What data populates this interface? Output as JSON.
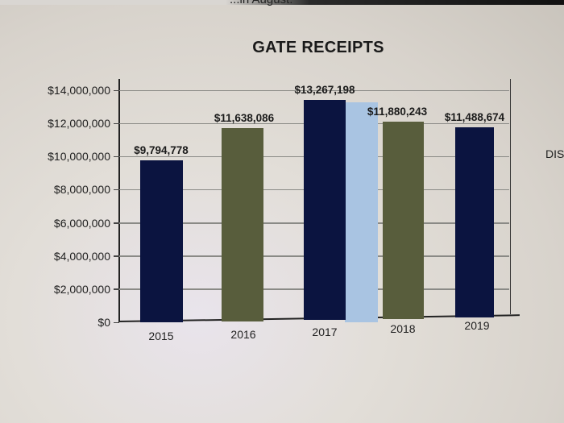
{
  "page": {
    "cut_off_top_text": "...in August.",
    "side_text": "DIS"
  },
  "chart_data": {
    "type": "bar",
    "title": "GATE RECEIPTS",
    "xlabel": "",
    "ylabel": "",
    "ylim": [
      0,
      14000000
    ],
    "grid": true,
    "legend": null,
    "categories": [
      "2015",
      "2016",
      "2017",
      "2018",
      "2019"
    ],
    "values": [
      9794778,
      11638086,
      13267198,
      11880243,
      11488674
    ],
    "value_labels": [
      "$9,794,778",
      "$11,638,086",
      "$13,267,198",
      "$11,880,243",
      "$11,488,674"
    ],
    "bar_colors": [
      "#0b1440",
      "#585d3c",
      "#0b1440",
      "#585d3c",
      "#0b1440"
    ],
    "extra_unlabeled_bar": {
      "position": "between 2017 and 2018",
      "color": "#a9c4e2",
      "approx_value": 13267198
    },
    "y_ticks": [
      {
        "value": 14000000,
        "label": "$14,000,000"
      },
      {
        "value": 12000000,
        "label": "$12,000,000"
      },
      {
        "value": 10000000,
        "label": "$10,000,000"
      },
      {
        "value": 8000000,
        "label": "$8,000,000"
      },
      {
        "value": 6000000,
        "label": "$6,000,000"
      },
      {
        "value": 4000000,
        "label": "$4,000,000"
      },
      {
        "value": 2000000,
        "label": "$2,000,000"
      },
      {
        "value": 0,
        "label": "$0"
      }
    ]
  }
}
